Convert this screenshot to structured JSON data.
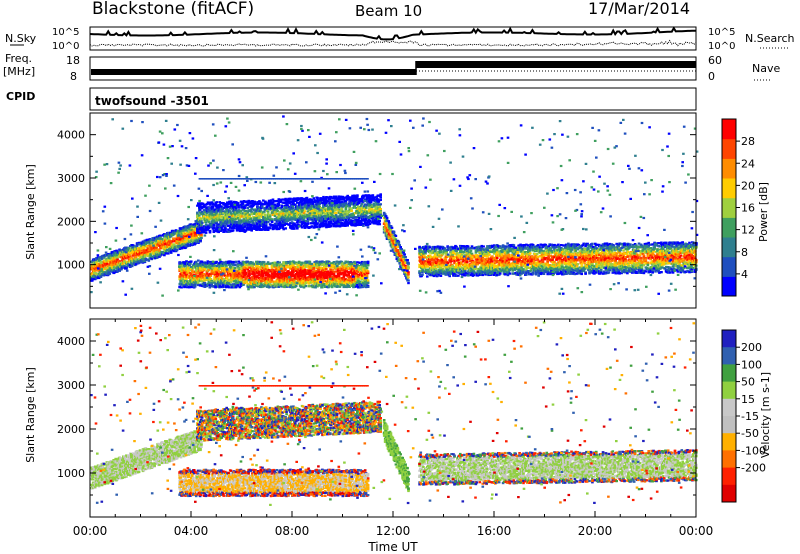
{
  "header": {
    "station": "Blackstone (fitACF)",
    "beam": "Beam 10",
    "date": "17/Mar/2014"
  },
  "top_panels": {
    "nsky_label": "N.Sky",
    "nsearch_label": "N.Search",
    "nsky_ticks": [
      "10^5",
      "10^0"
    ],
    "nsearch_ticks": [
      "10^5",
      "10^0"
    ],
    "freq_label_line1": "Freq.",
    "freq_label_line2": "[MHz]",
    "freq_ticks": [
      "18",
      "8"
    ],
    "nave_label": "Nave",
    "nave_ticks": [
      "60",
      "0"
    ],
    "cpid_label": "CPID",
    "cpid_value": "twofsound -3501"
  },
  "colors": {
    "power_scale": [
      "#0000ff",
      "#1f4fbf",
      "#2f7f8f",
      "#3f9f5f",
      "#9fcf3f",
      "#ffcc00",
      "#ff8c00",
      "#ff4500",
      "#ff0000"
    ],
    "velocity_scale": [
      "#2020c0",
      "#3060b0",
      "#40a040",
      "#90d040",
      "#c8c8c8",
      "#c0c0c0",
      "#ffb000",
      "#ff7000",
      "#ff2000",
      "#e00000"
    ]
  },
  "chart_data": [
    {
      "type": "heatmap",
      "name": "power",
      "ylabel": "Slant Range [km]",
      "ylim": [
        0,
        4500
      ],
      "yticks": [
        "1000",
        "2000",
        "3000",
        "4000"
      ],
      "colorbar_label": "Power [dB]",
      "colorbar_ticks": [
        "28",
        "24",
        "20",
        "16",
        "12",
        "8",
        "4"
      ],
      "colorbar_range": [
        0,
        32
      ]
    },
    {
      "type": "heatmap",
      "name": "velocity",
      "ylabel": "Slant Range [km]",
      "ylim": [
        0,
        4500
      ],
      "yticks": [
        "1000",
        "2000",
        "3000",
        "4000"
      ],
      "colorbar_label": "Velocity [m s-1]",
      "colorbar_ticks": [
        "200",
        "100",
        "50",
        "15",
        "-15",
        "-50",
        "-100",
        "-200"
      ],
      "colorbar_range": [
        -250,
        250
      ],
      "xlabel": "Time UT",
      "xticks": [
        "00:00",
        "04:00",
        "08:00",
        "12:00",
        "16:00",
        "20:00",
        "00:00"
      ],
      "xlim_hours": [
        0,
        24
      ]
    }
  ],
  "scatter_features": [
    {
      "description": "band",
      "t_start": 0,
      "t_end": 4.4,
      "r_start": 900,
      "r_end": 1800,
      "width": 250
    },
    {
      "description": "band",
      "t_start": 3.5,
      "t_end": 11,
      "r_start": 800,
      "r_end": 800,
      "width": 300
    },
    {
      "description": "band",
      "t_start": 4.2,
      "t_end": 11.5,
      "r_start": 2100,
      "r_end": 2300,
      "width": 350
    },
    {
      "description": "band",
      "t_start": 11.6,
      "t_end": 12.6,
      "r_start": 2000,
      "r_end": 800,
      "width": 250
    },
    {
      "description": "band",
      "t_start": 13,
      "t_end": 24,
      "r_start": 1100,
      "r_end": 1200,
      "width": 350
    }
  ]
}
